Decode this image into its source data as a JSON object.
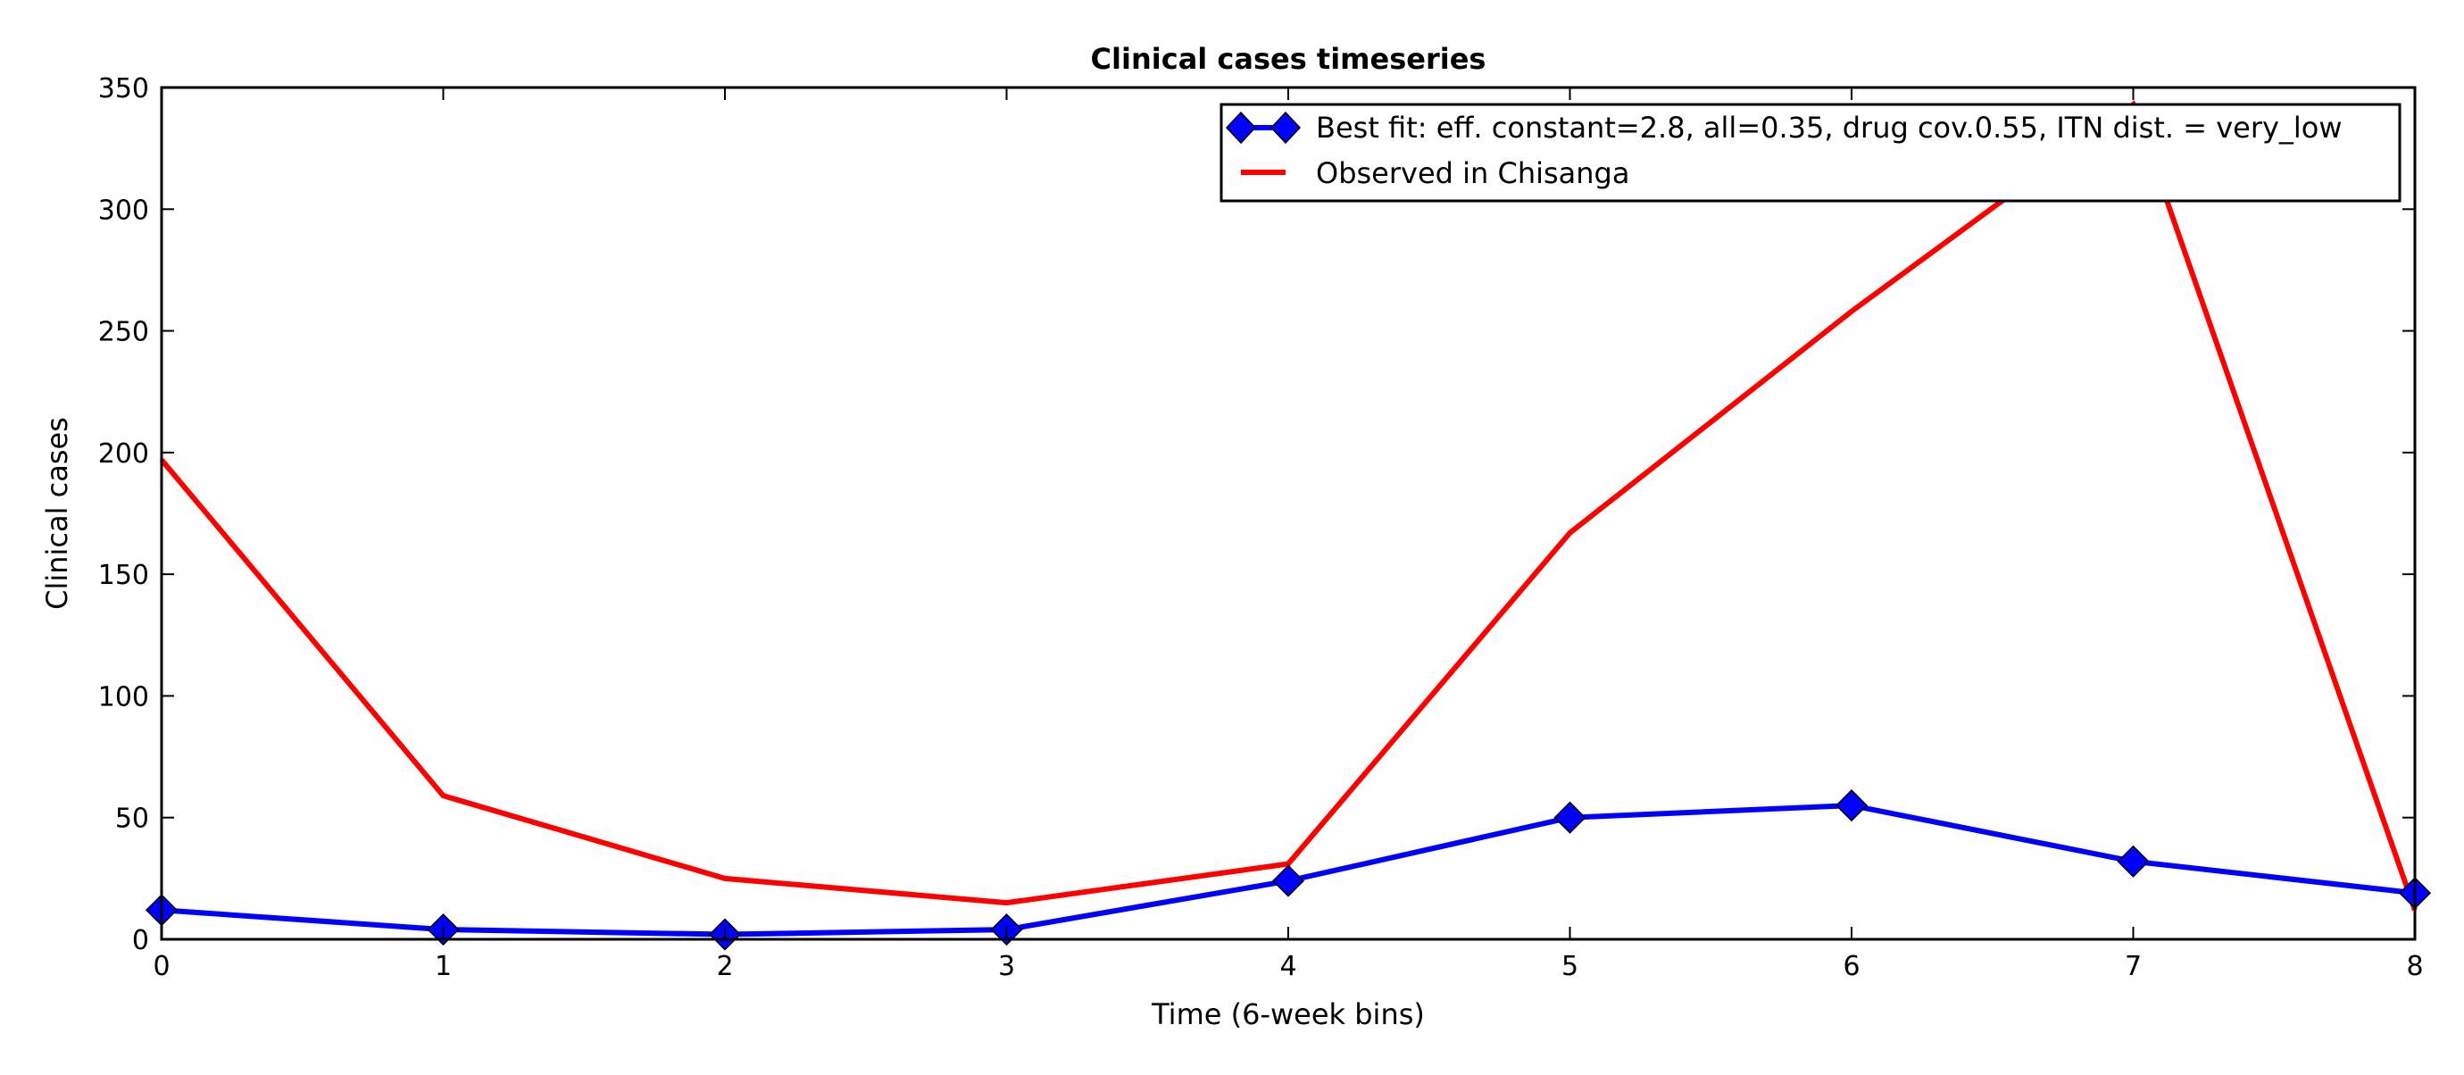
{
  "chart_data": {
    "type": "line",
    "title": "Clinical cases timeseries",
    "xlabel": "Time (6-week bins)",
    "ylabel": "Clinical cases",
    "xlim": [
      0,
      8
    ],
    "ylim": [
      0,
      350
    ],
    "x": [
      0,
      1,
      2,
      3,
      4,
      5,
      6,
      7,
      8
    ],
    "xticks": [
      "0",
      "1",
      "2",
      "3",
      "4",
      "5",
      "6",
      "7",
      "8"
    ],
    "yticks": [
      "0",
      "50",
      "100",
      "150",
      "200",
      "250",
      "300",
      "350"
    ],
    "grid": false,
    "legend_position": "top-right",
    "series": [
      {
        "name": "Best fit: eff. constant=2.8, all=0.35, drug cov.0.55, ITN dist. = very_low",
        "values": [
          12,
          4,
          2,
          4,
          24,
          50,
          55,
          32,
          19
        ],
        "color": "#0000ff",
        "marker": "diamond"
      },
      {
        "name": "Observed in Chisanga",
        "values": [
          197,
          59,
          25,
          15,
          31,
          167,
          258,
          343,
          12
        ],
        "color": "#ff0000",
        "marker": "none"
      }
    ]
  }
}
